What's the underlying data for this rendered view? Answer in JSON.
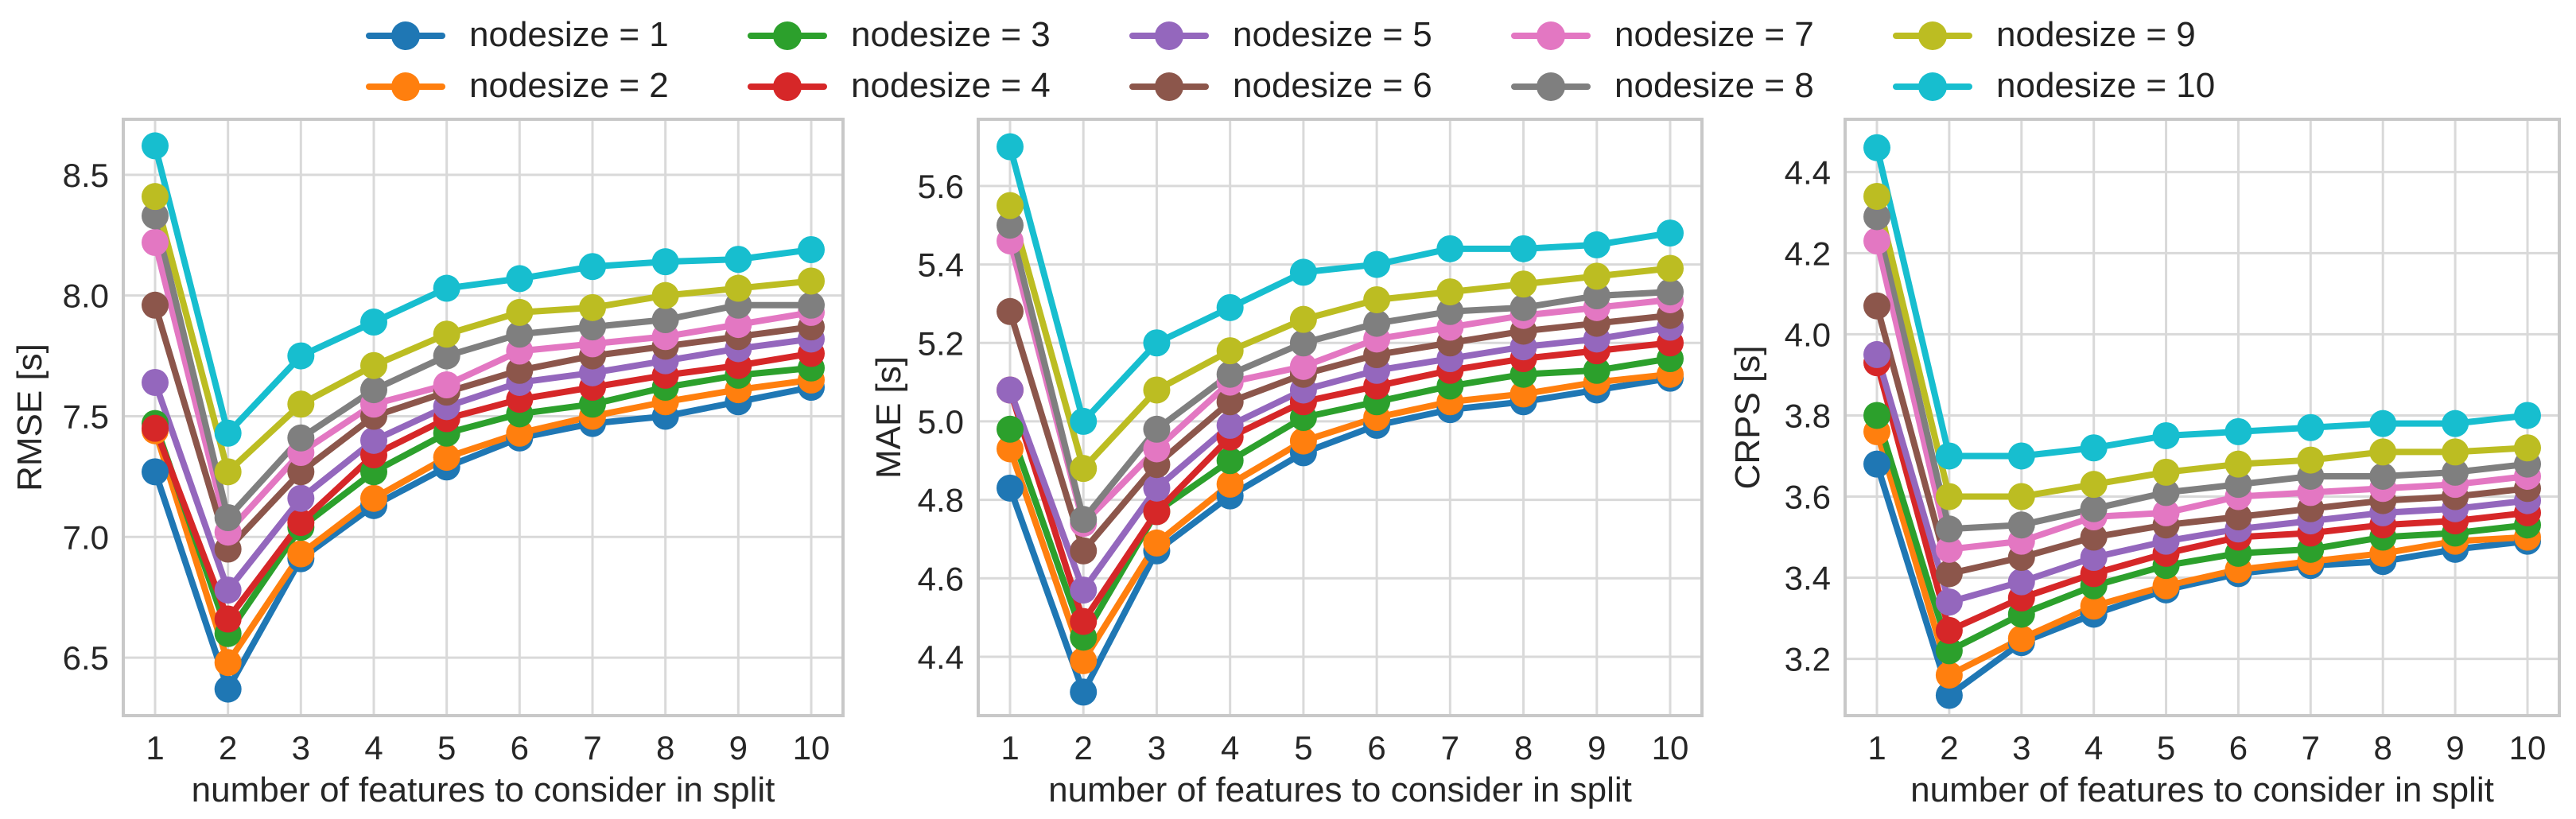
{
  "legend": [
    {
      "label": "nodesize = 1",
      "color": "#1f77b4"
    },
    {
      "label": "nodesize = 2",
      "color": "#ff7f0e"
    },
    {
      "label": "nodesize = 3",
      "color": "#2ca02c"
    },
    {
      "label": "nodesize = 4",
      "color": "#d62728"
    },
    {
      "label": "nodesize = 5",
      "color": "#9467bd"
    },
    {
      "label": "nodesize = 6",
      "color": "#8c564b"
    },
    {
      "label": "nodesize = 7",
      "color": "#e377c2"
    },
    {
      "label": "nodesize = 8",
      "color": "#7f7f7f"
    },
    {
      "label": "nodesize = 9",
      "color": "#bcbd22"
    },
    {
      "label": "nodesize = 10",
      "color": "#17becf"
    }
  ],
  "chart_data": [
    {
      "type": "line",
      "title": "",
      "xlabel": "number of features to consider in split",
      "ylabel": "RMSE [s]",
      "x": [
        1,
        2,
        3,
        4,
        5,
        6,
        7,
        8,
        9,
        10
      ],
      "xticks": [
        "1",
        "2",
        "3",
        "4",
        "5",
        "6",
        "7",
        "8",
        "9",
        "10"
      ],
      "yticks": [
        6.5,
        7.0,
        7.5,
        8.0,
        8.5
      ],
      "ytick_labels": [
        "6.5",
        "7.0",
        "7.5",
        "8.0",
        "8.5"
      ],
      "ylim": [
        6.26,
        8.73
      ],
      "series": [
        {
          "name": "nodesize = 1",
          "values": [
            7.27,
            6.37,
            6.91,
            7.13,
            7.29,
            7.41,
            7.47,
            7.5,
            7.56,
            7.62
          ]
        },
        {
          "name": "nodesize = 2",
          "values": [
            7.44,
            6.48,
            6.93,
            7.16,
            7.33,
            7.43,
            7.5,
            7.56,
            7.61,
            7.65
          ]
        },
        {
          "name": "nodesize = 3",
          "values": [
            7.47,
            6.6,
            7.04,
            7.27,
            7.43,
            7.51,
            7.55,
            7.62,
            7.67,
            7.7
          ]
        },
        {
          "name": "nodesize = 4",
          "values": [
            7.45,
            6.66,
            7.06,
            7.34,
            7.49,
            7.57,
            7.62,
            7.67,
            7.71,
            7.76
          ]
        },
        {
          "name": "nodesize = 5",
          "values": [
            7.64,
            6.78,
            7.16,
            7.4,
            7.54,
            7.64,
            7.68,
            7.73,
            7.78,
            7.82
          ]
        },
        {
          "name": "nodesize = 6",
          "values": [
            7.96,
            6.95,
            7.27,
            7.5,
            7.6,
            7.69,
            7.75,
            7.79,
            7.83,
            7.87
          ]
        },
        {
          "name": "nodesize = 7",
          "values": [
            8.22,
            7.02,
            7.35,
            7.55,
            7.63,
            7.77,
            7.8,
            7.83,
            7.88,
            7.93
          ]
        },
        {
          "name": "nodesize = 8",
          "values": [
            8.33,
            7.08,
            7.41,
            7.61,
            7.75,
            7.84,
            7.87,
            7.9,
            7.96,
            7.96
          ]
        },
        {
          "name": "nodesize = 9",
          "values": [
            8.41,
            7.27,
            7.55,
            7.71,
            7.84,
            7.93,
            7.95,
            8.0,
            8.03,
            8.06
          ]
        },
        {
          "name": "nodesize = 10",
          "values": [
            8.62,
            7.43,
            7.75,
            7.89,
            8.03,
            8.07,
            8.12,
            8.14,
            8.15,
            8.19
          ]
        }
      ]
    },
    {
      "type": "line",
      "title": "",
      "xlabel": "number of features to consider in split",
      "ylabel": "MAE [s]",
      "x": [
        1,
        2,
        3,
        4,
        5,
        6,
        7,
        8,
        9,
        10
      ],
      "xticks": [
        "1",
        "2",
        "3",
        "4",
        "5",
        "6",
        "7",
        "8",
        "9",
        "10"
      ],
      "yticks": [
        4.4,
        4.6,
        4.8,
        5.0,
        5.2,
        5.4,
        5.6
      ],
      "ytick_labels": [
        "4.4",
        "4.6",
        "4.8",
        "5.0",
        "5.2",
        "5.4",
        "5.6"
      ],
      "ylim": [
        4.25,
        5.77
      ],
      "series": [
        {
          "name": "nodesize = 1",
          "values": [
            4.83,
            4.31,
            4.67,
            4.81,
            4.92,
            4.99,
            5.03,
            5.05,
            5.08,
            5.11
          ]
        },
        {
          "name": "nodesize = 2",
          "values": [
            4.93,
            4.39,
            4.69,
            4.84,
            4.95,
            5.01,
            5.05,
            5.07,
            5.1,
            5.12
          ]
        },
        {
          "name": "nodesize = 3",
          "values": [
            4.98,
            4.45,
            4.77,
            4.9,
            5.01,
            5.05,
            5.09,
            5.12,
            5.13,
            5.16
          ]
        },
        {
          "name": "nodesize = 4",
          "values": [
            5.08,
            4.49,
            4.77,
            4.96,
            5.05,
            5.09,
            5.13,
            5.16,
            5.18,
            5.2
          ]
        },
        {
          "name": "nodesize = 5",
          "values": [
            5.08,
            4.57,
            4.83,
            4.99,
            5.08,
            5.13,
            5.16,
            5.19,
            5.21,
            5.24
          ]
        },
        {
          "name": "nodesize = 6",
          "values": [
            5.28,
            4.67,
            4.89,
            5.05,
            5.12,
            5.17,
            5.2,
            5.23,
            5.25,
            5.27
          ]
        },
        {
          "name": "nodesize = 7",
          "values": [
            5.46,
            4.74,
            4.93,
            5.1,
            5.14,
            5.21,
            5.24,
            5.27,
            5.29,
            5.31
          ]
        },
        {
          "name": "nodesize = 8",
          "values": [
            5.5,
            4.75,
            4.98,
            5.12,
            5.2,
            5.25,
            5.28,
            5.29,
            5.32,
            5.33
          ]
        },
        {
          "name": "nodesize = 9",
          "values": [
            5.55,
            4.88,
            5.08,
            5.18,
            5.26,
            5.31,
            5.33,
            5.35,
            5.37,
            5.39
          ]
        },
        {
          "name": "nodesize = 10",
          "values": [
            5.7,
            5.0,
            5.2,
            5.29,
            5.38,
            5.4,
            5.44,
            5.44,
            5.45,
            5.48
          ]
        }
      ]
    },
    {
      "type": "line",
      "title": "",
      "xlabel": "number of features to consider in split",
      "ylabel": "CRPS [s]",
      "x": [
        1,
        2,
        3,
        4,
        5,
        6,
        7,
        8,
        9,
        10
      ],
      "xticks": [
        "1",
        "2",
        "3",
        "4",
        "5",
        "6",
        "7",
        "8",
        "9",
        "10"
      ],
      "yticks": [
        3.2,
        3.4,
        3.6,
        3.8,
        4.0,
        4.2,
        4.4
      ],
      "ytick_labels": [
        "3.2",
        "3.4",
        "3.6",
        "3.8",
        "4.0",
        "4.2",
        "4.4"
      ],
      "ylim": [
        3.06,
        4.53
      ],
      "series": [
        {
          "name": "nodesize = 1",
          "values": [
            3.68,
            3.11,
            3.24,
            3.31,
            3.37,
            3.41,
            3.43,
            3.44,
            3.47,
            3.49
          ]
        },
        {
          "name": "nodesize = 2",
          "values": [
            3.76,
            3.16,
            3.25,
            3.33,
            3.38,
            3.42,
            3.44,
            3.46,
            3.49,
            3.5
          ]
        },
        {
          "name": "nodesize = 3",
          "values": [
            3.8,
            3.22,
            3.31,
            3.38,
            3.43,
            3.46,
            3.47,
            3.5,
            3.51,
            3.53
          ]
        },
        {
          "name": "nodesize = 4",
          "values": [
            3.93,
            3.27,
            3.35,
            3.41,
            3.46,
            3.5,
            3.51,
            3.53,
            3.54,
            3.56
          ]
        },
        {
          "name": "nodesize = 5",
          "values": [
            3.95,
            3.34,
            3.39,
            3.45,
            3.49,
            3.52,
            3.54,
            3.56,
            3.57,
            3.59
          ]
        },
        {
          "name": "nodesize = 6",
          "values": [
            4.07,
            3.41,
            3.45,
            3.5,
            3.53,
            3.55,
            3.57,
            3.59,
            3.6,
            3.62
          ]
        },
        {
          "name": "nodesize = 7",
          "values": [
            4.23,
            3.47,
            3.49,
            3.55,
            3.56,
            3.6,
            3.61,
            3.62,
            3.63,
            3.65
          ]
        },
        {
          "name": "nodesize = 8",
          "values": [
            4.29,
            3.52,
            3.53,
            3.57,
            3.61,
            3.63,
            3.65,
            3.65,
            3.66,
            3.68
          ]
        },
        {
          "name": "nodesize = 9",
          "values": [
            4.34,
            3.6,
            3.6,
            3.63,
            3.66,
            3.68,
            3.69,
            3.71,
            3.71,
            3.72
          ]
        },
        {
          "name": "nodesize = 10",
          "values": [
            4.46,
            3.7,
            3.7,
            3.72,
            3.75,
            3.76,
            3.77,
            3.78,
            3.78,
            3.8
          ]
        }
      ]
    }
  ]
}
